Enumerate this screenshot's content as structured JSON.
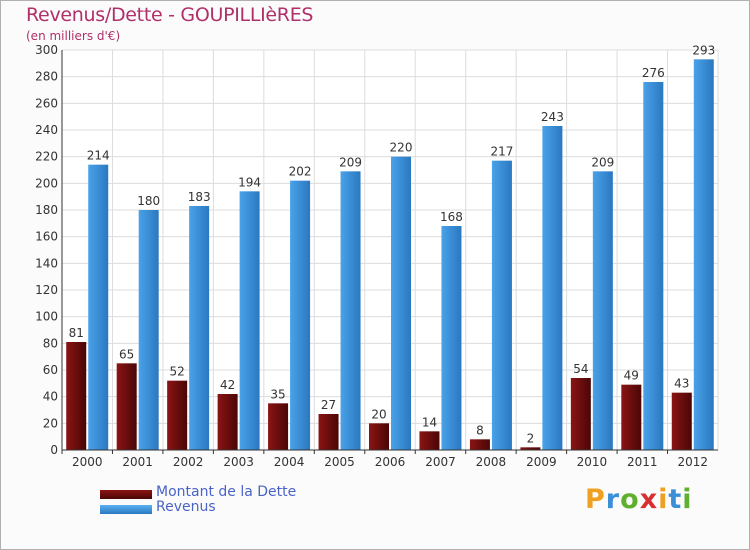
{
  "chart_data": {
    "type": "bar",
    "title": "Revenus/Dette - GOUPILLIèRES",
    "subtitle": "(en milliers d'€)",
    "categories": [
      "2000",
      "2001",
      "2002",
      "2003",
      "2004",
      "2005",
      "2006",
      "2007",
      "2008",
      "2009",
      "2010",
      "2011",
      "2012"
    ],
    "series": [
      {
        "name": "Montant de la Dette",
        "color": "#7a1010",
        "values": [
          81,
          65,
          52,
          42,
          35,
          27,
          20,
          14,
          8,
          2,
          54,
          49,
          43
        ]
      },
      {
        "name": "Revenus",
        "color": "#3a8fd8",
        "values": [
          214,
          180,
          183,
          194,
          202,
          209,
          220,
          168,
          217,
          243,
          209,
          276,
          293
        ]
      }
    ],
    "ylim": [
      0,
      300
    ],
    "yticks": [
      0,
      20,
      40,
      60,
      80,
      100,
      120,
      140,
      160,
      180,
      200,
      220,
      240,
      260,
      280,
      300
    ],
    "grid": true,
    "legend": "bottom-left",
    "xlabel": "",
    "ylabel": ""
  },
  "logo": {
    "letters": [
      "P",
      "r",
      "o",
      "x",
      "i",
      "t",
      "i"
    ],
    "colors": [
      "#f0a020",
      "#3a8fd8",
      "#60b030",
      "#d83030",
      "#f0a020",
      "#3a8fd8",
      "#60b030"
    ]
  }
}
